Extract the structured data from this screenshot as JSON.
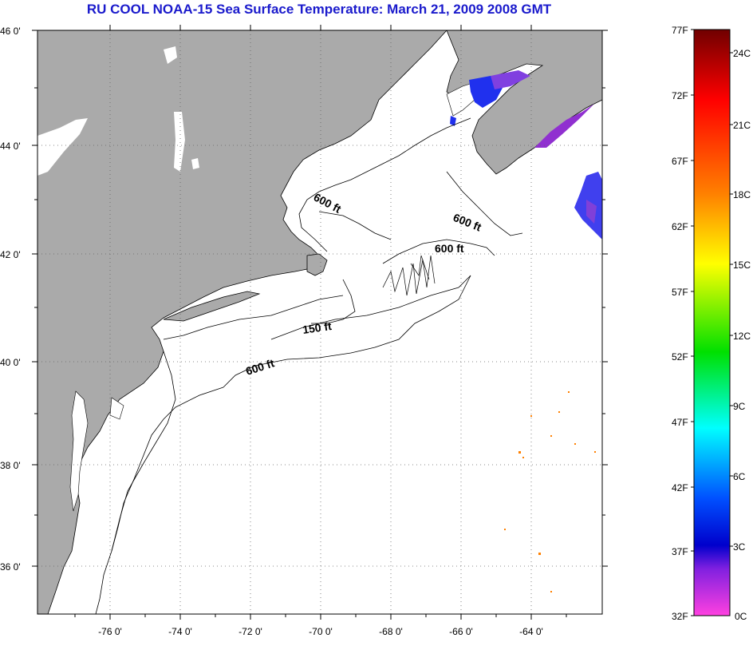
{
  "title": "RU COOL  NOAA-15  Sea Surface Temperature:  March 21, 2009 2008 GMT",
  "map": {
    "lat_labels": [
      "46 0'",
      "44 0'",
      "42 0'",
      "40 0'",
      "38 0'",
      "36 0'"
    ],
    "lon_labels": [
      "-76 0'",
      "-74 0'",
      "-72 0'",
      "-70 0'",
      "-68 0'",
      "-66 0'",
      "-64 0'"
    ],
    "contours": [
      {
        "label": "600 ft"
      },
      {
        "label": "600 ft"
      },
      {
        "label": "600 ft"
      },
      {
        "label": "150 ft"
      },
      {
        "label": "600 ft"
      }
    ],
    "land_color": "#aaaaaa",
    "ocean_color": "#ffffff"
  },
  "colorbar": {
    "fahrenheit": [
      "77F",
      "72F",
      "67F",
      "62F",
      "57F",
      "52F",
      "47F",
      "42F",
      "37F",
      "32F"
    ],
    "celsius": [
      "24C",
      "21C",
      "18C",
      "15C",
      "12C",
      "9C",
      "6C",
      "3C",
      "0C"
    ],
    "colors_top_to_bottom": [
      "#7a0000",
      "#ff0000",
      "#ff8000",
      "#ffff00",
      "#00ff00",
      "#00ffff",
      "#0000ff",
      "#8000ff",
      "#ff40ff"
    ]
  }
}
